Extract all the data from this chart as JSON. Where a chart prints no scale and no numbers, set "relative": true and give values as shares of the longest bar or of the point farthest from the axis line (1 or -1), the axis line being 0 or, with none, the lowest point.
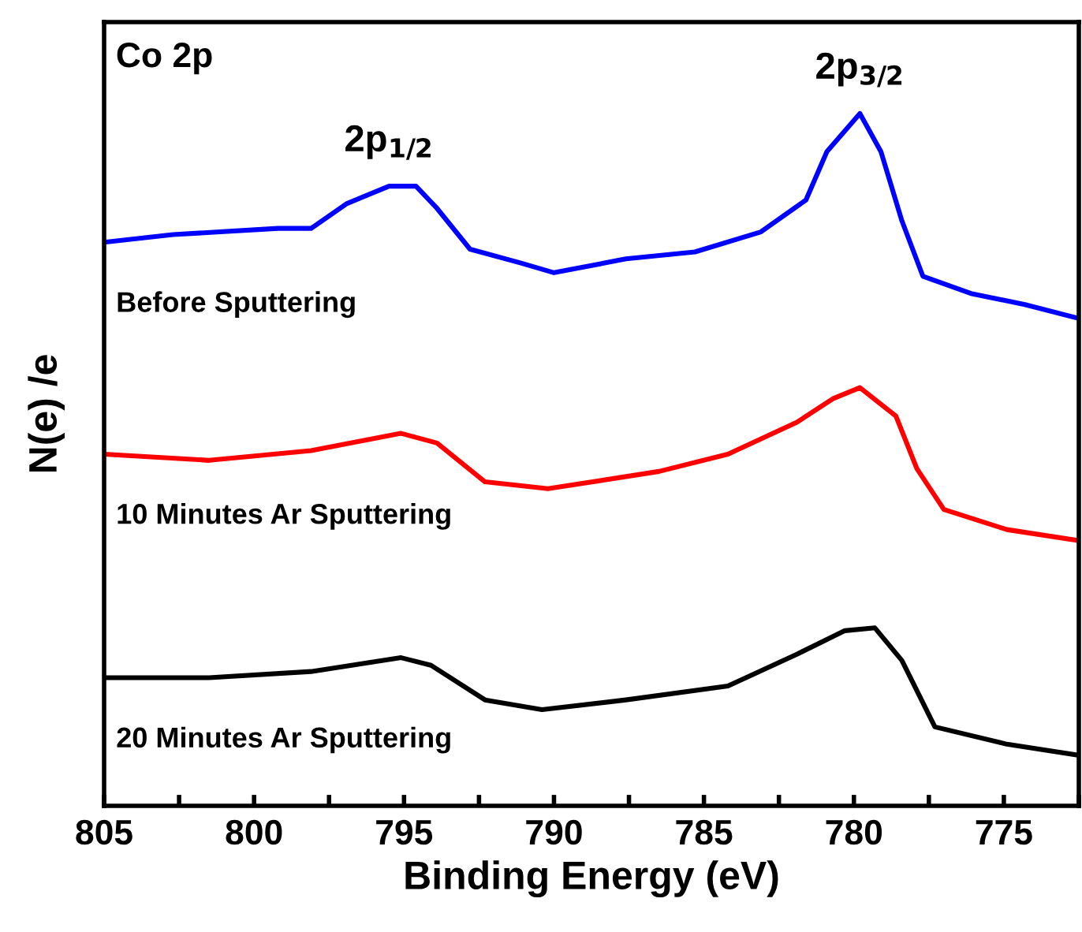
{
  "chart_data": {
    "type": "line",
    "relative": true,
    "xlabel": "Binding Energy (eV)",
    "ylabel": "N(e) /e",
    "tick_labels": "x",
    "xlim": [
      805,
      772.5
    ],
    "xticks": [
      805,
      {
        "value": 802.5,
        "label": null
      },
      800,
      {
        "value": 797.5,
        "label": null
      },
      795,
      {
        "value": 792.5,
        "label": null
      },
      790,
      {
        "value": 787.5,
        "label": null
      },
      785,
      {
        "value": 782.5,
        "label": null
      },
      780,
      {
        "value": 777.5,
        "label": null
      },
      775,
      {
        "value": 772.5,
        "label": null
      }
    ],
    "annotations": [
      "Co 2p",
      {
        "text": "2p$_{1/2}$",
        "x": 795.5,
        "y": 0.895
      },
      {
        "text": "2p$_{3/2}$",
        "x": 779.8,
        "y": 1.0
      }
    ],
    "grid": false,
    "legend": false,
    "marker": "none",
    "line_style": "solid",
    "series": [
      {
        "name": "Before Sputtering",
        "color": "#0000ff",
        "x": [
          805,
          802.7,
          799.2,
          798.1,
          796.9,
          795.5,
          794.6,
          793.9,
          792.8,
          791.1,
          790.0,
          787.6,
          785.3,
          783.1,
          781.6,
          780.9,
          779.8,
          779.1,
          778.4,
          777.7,
          776.1,
          774.3,
          772.5
        ],
        "values": [
          0.814,
          0.825,
          0.834,
          0.834,
          0.87,
          0.895,
          0.895,
          0.863,
          0.804,
          0.784,
          0.77,
          0.79,
          0.8,
          0.829,
          0.875,
          0.945,
          1.0,
          0.945,
          0.845,
          0.765,
          0.74,
          0.724,
          0.704
        ]
      },
      {
        "name": "10 Minutes Ar Sputtering",
        "color": "#ff0000",
        "x": [
          805,
          801.5,
          798.1,
          795.1,
          793.9,
          792.3,
          790.2,
          786.5,
          784.2,
          781.9,
          780.7,
          779.8,
          778.6,
          777.9,
          777.0,
          774.9,
          772.5
        ],
        "values": [
          0.508,
          0.499,
          0.513,
          0.538,
          0.524,
          0.468,
          0.458,
          0.483,
          0.508,
          0.554,
          0.588,
          0.604,
          0.563,
          0.487,
          0.428,
          0.399,
          0.383
        ]
      },
      {
        "name": "20 Minutes Ar Sputtering",
        "color": "#000000",
        "x": [
          805,
          801.5,
          798.1,
          795.1,
          794.1,
          792.3,
          790.4,
          787.6,
          784.2,
          781.9,
          780.3,
          779.3,
          778.4,
          777.3,
          774.9,
          772.5
        ],
        "values": [
          0.185,
          0.185,
          0.194,
          0.214,
          0.203,
          0.153,
          0.139,
          0.153,
          0.173,
          0.219,
          0.253,
          0.257,
          0.21,
          0.114,
          0.089,
          0.073
        ]
      }
    ]
  }
}
